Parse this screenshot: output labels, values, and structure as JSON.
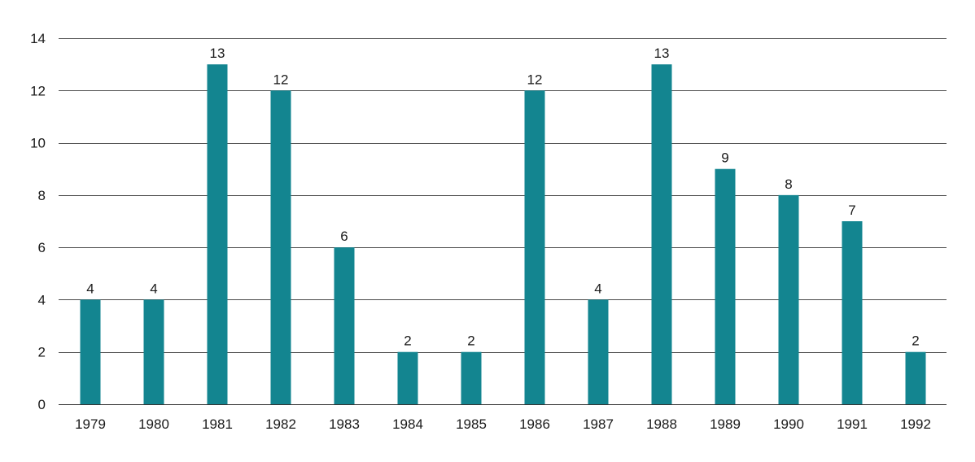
{
  "chart_data": {
    "type": "bar",
    "categories": [
      "1979",
      "1980",
      "1981",
      "1982",
      "1983",
      "1984",
      "1985",
      "1986",
      "1987",
      "1988",
      "1989",
      "1990",
      "1991",
      "1992"
    ],
    "values": [
      4,
      4,
      13,
      12,
      6,
      2,
      2,
      12,
      4,
      13,
      9,
      8,
      7,
      2
    ],
    "title": "",
    "xlabel": "",
    "ylabel": "",
    "ylim": [
      0,
      14
    ],
    "yticks": [
      "0",
      "2",
      "4",
      "6",
      "8",
      "10",
      "12",
      "14"
    ],
    "grid": true,
    "legend": "none",
    "bar_color": "#138590",
    "gridline_color": "#4a4a4a",
    "text_color": "#1a1a1a"
  }
}
